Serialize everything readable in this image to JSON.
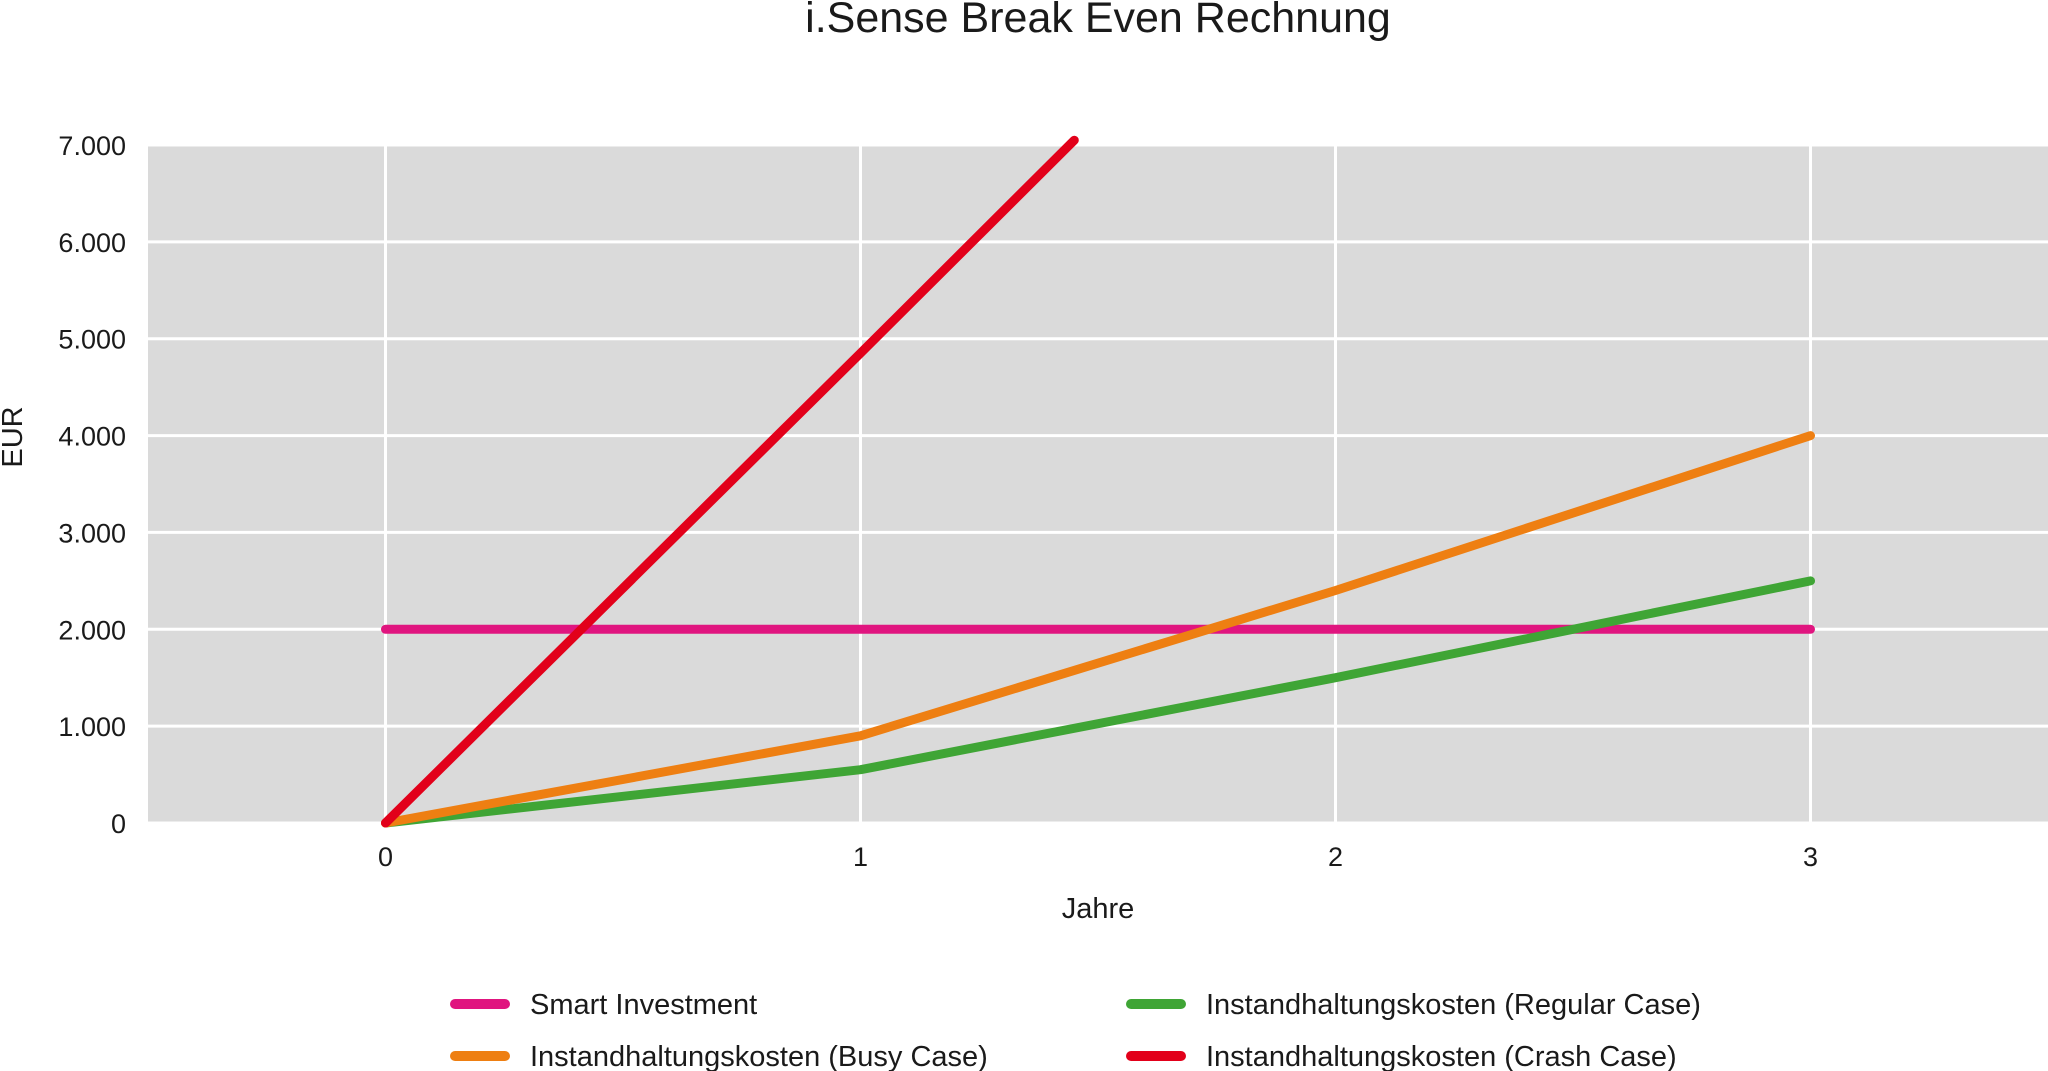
{
  "chart_data": {
    "type": "line",
    "title": "i.Sense Break Even Rechnung",
    "xlabel": "Jahre",
    "ylabel": "EUR",
    "x_ticks": [
      "0",
      "1",
      "2",
      "3"
    ],
    "y_ticks": [
      "0",
      "1.000",
      "2.000",
      "3.000",
      "4.000",
      "5.000",
      "6.000",
      "7.000"
    ],
    "xlim": [
      -0.5,
      3.5
    ],
    "ylim": [
      0,
      7000
    ],
    "grid": true,
    "plot_background": "#dadada",
    "grid_color": "#ffffff",
    "legend_position": "bottom",
    "series": [
      {
        "name": "Smart Investment",
        "color": "#e0157f",
        "x": [
          0,
          1,
          2,
          3
        ],
        "y": [
          2000,
          2000,
          2000,
          2000
        ]
      },
      {
        "name": "Instandhaltungskosten (Regular Case)",
        "color": "#3fa535",
        "x": [
          0,
          1,
          2,
          3
        ],
        "y": [
          0,
          550,
          1500,
          2500
        ]
      },
      {
        "name": "Instandhaltungskosten (Busy Case)",
        "color": "#ee7f12",
        "x": [
          0,
          1,
          2,
          3
        ],
        "y": [
          0,
          900,
          2400,
          4000
        ]
      },
      {
        "name": "Instandhaltungskosten (Crash Case)",
        "color": "#e2001a",
        "x": [
          0,
          1,
          1.45
        ],
        "y": [
          0,
          4850,
          7050
        ]
      }
    ]
  }
}
